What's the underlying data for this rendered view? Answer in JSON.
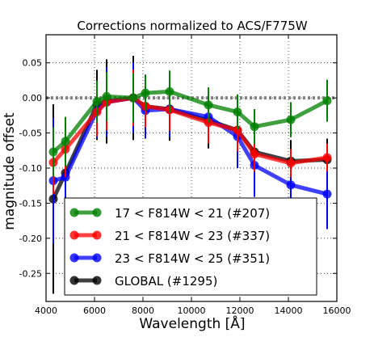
{
  "chart_data": {
    "type": "line",
    "title": "Corrections normalized to ACS/F775W",
    "xlabel": "Wavelength [Å]",
    "ylabel": "magnitude offset",
    "xlim": [
      4000,
      16000
    ],
    "ylim": [
      -0.29,
      0.09
    ],
    "xticks": [
      4000,
      6000,
      8000,
      10000,
      12000,
      14000,
      16000
    ],
    "yticks": [
      0.05,
      0.0,
      -0.05,
      -0.1,
      -0.15,
      -0.2,
      -0.25
    ],
    "grid": true,
    "legend_position": "lower-left",
    "reference_line": {
      "y": 0.0,
      "style": "dotted",
      "color": "#808080"
    },
    "series": [
      {
        "name": "GLOBAL (#1295)",
        "color": "#000000",
        "x": [
          4300,
          4800,
          6100,
          6500,
          7600,
          8100,
          9100,
          10700,
          11900,
          12600,
          14100,
          15600
        ],
        "y": [
          -0.144,
          -0.107,
          -0.01,
          -0.005,
          0.0,
          -0.012,
          -0.016,
          -0.032,
          -0.046,
          -0.077,
          -0.09,
          -0.088
        ],
        "err": [
          0.135,
          0.075,
          0.05,
          0.06,
          0.06,
          0.045,
          0.045,
          0.04,
          0.05,
          0.035,
          0.03,
          0.03
        ]
      },
      {
        "name": "23 < F814W < 25 (#351)",
        "color": "#0000ff",
        "x": [
          4300,
          4800,
          6100,
          6500,
          7600,
          8100,
          9100,
          10700,
          11900,
          12600,
          14100,
          15600
        ],
        "y": [
          -0.118,
          -0.113,
          -0.018,
          -0.006,
          0.0,
          -0.018,
          -0.016,
          -0.027,
          -0.055,
          -0.096,
          -0.124,
          -0.137
        ],
        "err": [
          0.09,
          0.065,
          0.04,
          0.05,
          0.05,
          0.04,
          0.04,
          0.035,
          0.045,
          0.045,
          0.05,
          0.05
        ]
      },
      {
        "name": "21 < F814W < 23 (#337)",
        "color": "#ff0000",
        "x": [
          4300,
          4800,
          6100,
          6500,
          7600,
          8100,
          9100,
          10700,
          11900,
          12600,
          14100,
          15600
        ],
        "y": [
          -0.092,
          -0.073,
          -0.02,
          -0.006,
          0.0,
          -0.012,
          -0.017,
          -0.035,
          -0.046,
          -0.08,
          -0.093,
          -0.085
        ],
        "err": [
          0.045,
          0.04,
          0.035,
          0.04,
          0.04,
          0.03,
          0.03,
          0.03,
          0.03,
          0.025,
          0.02,
          0.02
        ]
      },
      {
        "name": "17 < F814W < 21 (#207)",
        "color": "#008000",
        "x": [
          4300,
          4800,
          6100,
          6500,
          7600,
          8100,
          9100,
          10700,
          11900,
          12600,
          14100,
          15600
        ],
        "y": [
          -0.077,
          -0.062,
          -0.005,
          0.002,
          0.0,
          0.007,
          0.009,
          -0.01,
          -0.02,
          -0.041,
          -0.031,
          -0.004
        ],
        "err": [
          0.035,
          0.035,
          0.03,
          0.035,
          0.035,
          0.025,
          0.03,
          0.025,
          0.025,
          0.025,
          0.025,
          0.03
        ]
      }
    ],
    "legend": [
      {
        "label": "17 < F814W < 21 (#207)",
        "color": "#008000"
      },
      {
        "label": "21 < F814W < 23 (#337)",
        "color": "#ff0000"
      },
      {
        "label": "23 < F814W < 25 (#351)",
        "color": "#0000ff"
      },
      {
        "label": "GLOBAL (#1295)",
        "color": "#000000"
      }
    ]
  }
}
